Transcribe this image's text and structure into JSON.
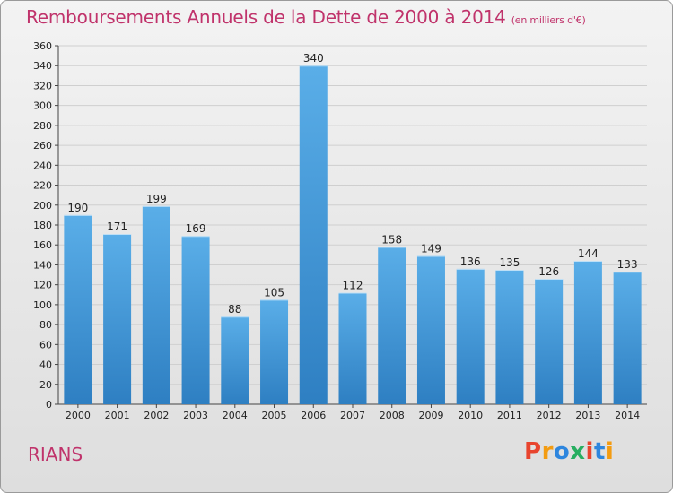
{
  "header": {
    "title": "Remboursements Annuels de la Dette de 2000 à 2014",
    "subtitle": "(en milliers d'€)"
  },
  "footer": {
    "town": "RIANS",
    "logo": "Proxiti"
  },
  "colors": {
    "title": "#c0336b",
    "bar_top": "#5aaee8",
    "bar_bottom": "#2e7fc2"
  },
  "chart_data": {
    "type": "bar",
    "title": "Remboursements Annuels de la Dette de 2000 à 2014",
    "subtitle": "(en milliers d'€)",
    "xlabel": "",
    "ylabel": "",
    "categories": [
      "2000",
      "2001",
      "2002",
      "2003",
      "2004",
      "2005",
      "2006",
      "2007",
      "2008",
      "2009",
      "2010",
      "2011",
      "2012",
      "2013",
      "2014"
    ],
    "values": [
      190,
      171,
      199,
      169,
      88,
      105,
      340,
      112,
      158,
      149,
      136,
      135,
      126,
      144,
      133
    ],
    "ylim": [
      0,
      360
    ],
    "ytick_step": 20,
    "grid": true,
    "legend": "none"
  }
}
